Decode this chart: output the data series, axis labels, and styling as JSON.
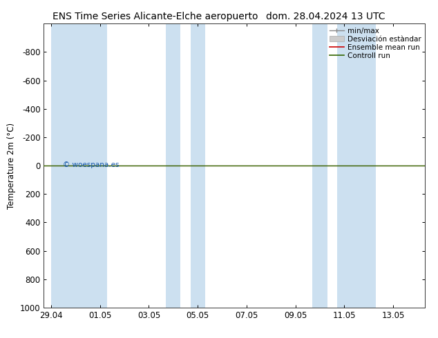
{
  "title_left": "ENS Time Series Alicante-Elche aeropuerto",
  "title_right": "dom. 28.04.2024 13 UTC",
  "ylabel": "Temperature 2m (°C)",
  "ylim_bottom": 1000,
  "ylim_top": -1000,
  "yticks": [
    -800,
    -600,
    -400,
    -200,
    0,
    200,
    400,
    600,
    800,
    1000
  ],
  "xtick_labels": [
    "29.04",
    "01.05",
    "03.05",
    "05.05",
    "07.05",
    "09.05",
    "11.05",
    "13.05"
  ],
  "xtick_positions": [
    0,
    2,
    4,
    6,
    8,
    10,
    12,
    14
  ],
  "x_min": -0.3,
  "x_max": 15.3,
  "blue_bands": [
    [
      0.0,
      2.5
    ],
    [
      4.5,
      5.0
    ],
    [
      5.5,
      6.5
    ],
    [
      10.5,
      11.0
    ],
    [
      11.5,
      13.5
    ]
  ],
  "control_run_y": 0,
  "ensemble_mean_y": 0,
  "watermark": "© woespana.es",
  "band_color": "#cce0f0",
  "grid_color": "#cccccc",
  "ensemble_mean_color": "#cc0000",
  "control_run_color": "#336600",
  "background_color": "#ffffff",
  "title_fontsize": 10,
  "axis_fontsize": 8.5,
  "legend_fontsize": 7.5
}
